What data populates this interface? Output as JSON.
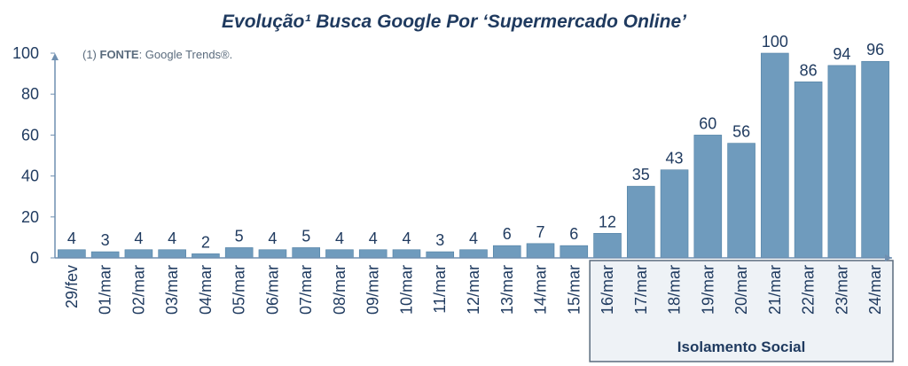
{
  "chart_data": {
    "type": "bar",
    "title": "Evolução¹ Busca Google Por ‘Supermercado Online’",
    "source_prefix": "(1) ",
    "source_bold": "FONTE",
    "source_rest": ": Google Trends®.",
    "categories": [
      "29/fev",
      "01/mar",
      "02/mar",
      "03/mar",
      "04/mar",
      "05/mar",
      "06/mar",
      "07/mar",
      "08/mar",
      "09/mar",
      "10/mar",
      "11/mar",
      "12/mar",
      "13/mar",
      "14/mar",
      "15/mar",
      "16/mar",
      "17/mar",
      "18/mar",
      "19/mar",
      "20/mar",
      "21/mar",
      "22/mar",
      "23/mar",
      "24/mar"
    ],
    "values": [
      4,
      3,
      4,
      4,
      2,
      5,
      4,
      5,
      4,
      4,
      4,
      3,
      4,
      6,
      7,
      6,
      12,
      35,
      43,
      60,
      56,
      100,
      86,
      94,
      96
    ],
    "ylim": [
      0,
      100
    ],
    "yticks": [
      0,
      20,
      40,
      60,
      80,
      100
    ],
    "xlabel": "",
    "ylabel": "",
    "grid": false,
    "annotation": {
      "text": "Isolamento Social",
      "from_category": "16/mar",
      "to_category": "24/mar"
    },
    "colors": {
      "bar": "#6f9bbd",
      "bar_border": "#4f7fa3",
      "text": "#1f3a5f",
      "axis": "#6f8fb0",
      "annotation_fill": "#eef2f6",
      "annotation_border": "#5a6b7d"
    }
  }
}
